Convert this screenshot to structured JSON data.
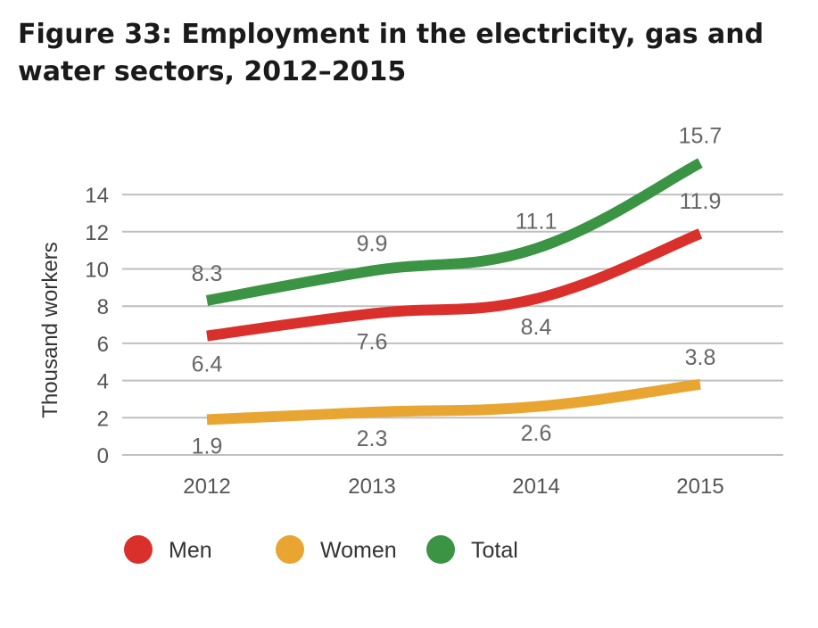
{
  "title": "Figure 33: Employment in the electricity, gas and water sectors, 2012–2015",
  "chart_data": {
    "type": "line",
    "categories": [
      "2012",
      "2013",
      "2014",
      "2015"
    ],
    "ylabel": "Thousand workers",
    "ylim": [
      0,
      15
    ],
    "yticks": [
      0,
      2,
      4,
      6,
      8,
      10,
      12,
      14
    ],
    "grid": true,
    "legend_position": "bottom",
    "series": [
      {
        "name": "Men",
        "color": "#d9302c",
        "values": [
          6.4,
          7.6,
          8.4,
          11.9
        ],
        "labels": [
          "6.4",
          "7.6",
          "8.4",
          "11.9"
        ]
      },
      {
        "name": "Women",
        "color": "#e8a532",
        "values": [
          1.9,
          2.3,
          2.6,
          3.8
        ],
        "labels": [
          "1.9",
          "2.3",
          "2.6",
          "3.8"
        ]
      },
      {
        "name": "Total",
        "color": "#3a9443",
        "values": [
          8.3,
          9.9,
          11.1,
          15.7
        ],
        "labels": [
          "8.3",
          "9.9",
          "11.1",
          "15.7"
        ]
      }
    ]
  }
}
